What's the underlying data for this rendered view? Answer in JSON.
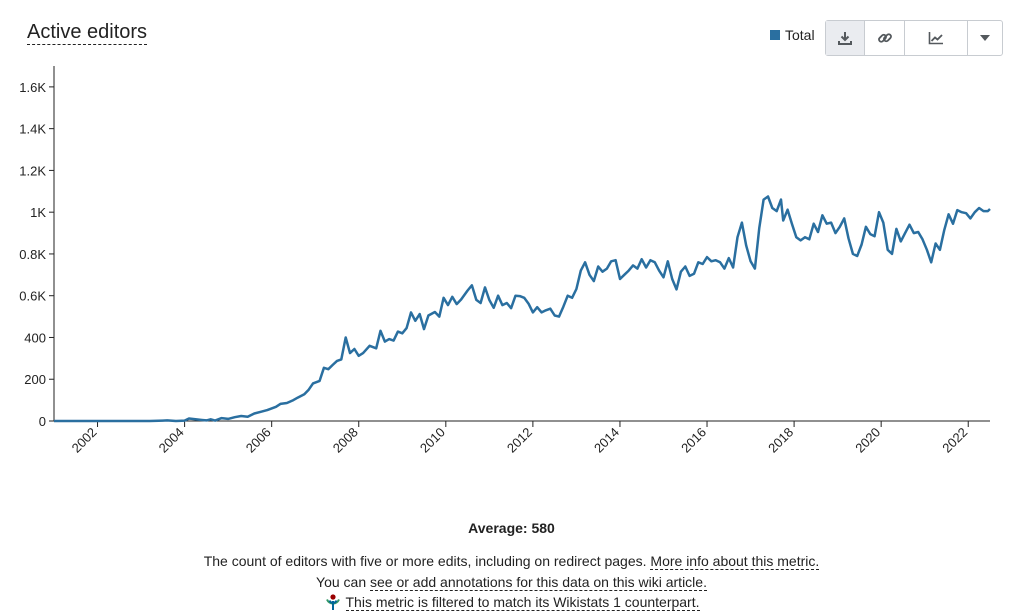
{
  "title": "Active editors",
  "legend": {
    "label": "Total",
    "color": "#2a6fa0"
  },
  "toolbar": {
    "download_icon": "download-icon",
    "link_icon": "link-icon",
    "chart_icon": "line-chart-icon",
    "more_icon": "caret-down-icon"
  },
  "average": "Average: 580",
  "footer": {
    "description": "The count of editors with five or more edits, including on redirect pages. ",
    "more_info_link": "More info about this metric.",
    "annotations_prefix": "You can ",
    "annotations_link": "see or add annotations for this data on this wiki article.",
    "filter_note": "This metric is filtered to match its Wikistats 1 counterpart.",
    "wiki_icon": "wikimedia-icon"
  },
  "chart_data": {
    "type": "line",
    "title": "Active editors",
    "xlabel": "",
    "ylabel": "",
    "x_range": [
      2001.0,
      2022.5
    ],
    "ylim": [
      0,
      1700
    ],
    "y_ticks": [
      0,
      200,
      400,
      600,
      800,
      1000,
      1200,
      1400,
      1600
    ],
    "y_tick_labels": [
      "0",
      "200",
      "400",
      "0.6K",
      "0.8K",
      "1K",
      "1.2K",
      "1.4K",
      "1.6K"
    ],
    "x_ticks": [
      2002,
      2004,
      2006,
      2008,
      2010,
      2012,
      2014,
      2016,
      2018,
      2020,
      2022
    ],
    "x_tick_labels": [
      "2002",
      "2004",
      "2006",
      "2008",
      "2010",
      "2012",
      "2014",
      "2016",
      "2018",
      "2020",
      "2022"
    ],
    "grid": false,
    "legend_position": "top-right",
    "series": [
      {
        "name": "Total",
        "color": "#2a6fa0",
        "points": [
          [
            2001.0,
            0
          ],
          [
            2001.5,
            0
          ],
          [
            2002.0,
            0
          ],
          [
            2002.5,
            0
          ],
          [
            2003.0,
            0
          ],
          [
            2003.2,
            0
          ],
          [
            2003.5,
            2
          ],
          [
            2003.6,
            3
          ],
          [
            2003.8,
            0
          ],
          [
            2004.0,
            2
          ],
          [
            2004.1,
            12
          ],
          [
            2004.25,
            8
          ],
          [
            2004.4,
            5
          ],
          [
            2004.5,
            3
          ],
          [
            2004.6,
            8
          ],
          [
            2004.7,
            2
          ],
          [
            2004.85,
            14
          ],
          [
            2005.0,
            10
          ],
          [
            2005.15,
            18
          ],
          [
            2005.3,
            24
          ],
          [
            2005.45,
            20
          ],
          [
            2005.6,
            36
          ],
          [
            2005.75,
            44
          ],
          [
            2005.9,
            52
          ],
          [
            2006.1,
            68
          ],
          [
            2006.2,
            82
          ],
          [
            2006.35,
            86
          ],
          [
            2006.5,
            100
          ],
          [
            2006.6,
            112
          ],
          [
            2006.75,
            128
          ],
          [
            2006.85,
            150
          ],
          [
            2006.95,
            180
          ],
          [
            2007.1,
            192
          ],
          [
            2007.2,
            255
          ],
          [
            2007.3,
            248
          ],
          [
            2007.4,
            268
          ],
          [
            2007.5,
            288
          ],
          [
            2007.6,
            295
          ],
          [
            2007.7,
            400
          ],
          [
            2007.8,
            325
          ],
          [
            2007.9,
            345
          ],
          [
            2008.0,
            312
          ],
          [
            2008.1,
            325
          ],
          [
            2008.25,
            360
          ],
          [
            2008.4,
            348
          ],
          [
            2008.5,
            432
          ],
          [
            2008.6,
            380
          ],
          [
            2008.7,
            392
          ],
          [
            2008.8,
            385
          ],
          [
            2008.9,
            428
          ],
          [
            2009.0,
            420
          ],
          [
            2009.1,
            445
          ],
          [
            2009.2,
            520
          ],
          [
            2009.3,
            480
          ],
          [
            2009.4,
            512
          ],
          [
            2009.5,
            440
          ],
          [
            2009.6,
            505
          ],
          [
            2009.75,
            522
          ],
          [
            2009.85,
            500
          ],
          [
            2009.95,
            590
          ],
          [
            2010.05,
            555
          ],
          [
            2010.15,
            595
          ],
          [
            2010.25,
            560
          ],
          [
            2010.35,
            582
          ],
          [
            2010.5,
            625
          ],
          [
            2010.6,
            650
          ],
          [
            2010.7,
            580
          ],
          [
            2010.8,
            565
          ],
          [
            2010.9,
            640
          ],
          [
            2011.0,
            580
          ],
          [
            2011.1,
            542
          ],
          [
            2011.2,
            600
          ],
          [
            2011.3,
            555
          ],
          [
            2011.4,
            565
          ],
          [
            2011.5,
            540
          ],
          [
            2011.6,
            600
          ],
          [
            2011.7,
            598
          ],
          [
            2011.8,
            590
          ],
          [
            2011.9,
            562
          ],
          [
            2012.0,
            520
          ],
          [
            2012.1,
            545
          ],
          [
            2012.2,
            520
          ],
          [
            2012.3,
            530
          ],
          [
            2012.4,
            538
          ],
          [
            2012.5,
            505
          ],
          [
            2012.6,
            500
          ],
          [
            2012.7,
            548
          ],
          [
            2012.8,
            600
          ],
          [
            2012.9,
            590
          ],
          [
            2013.0,
            632
          ],
          [
            2013.1,
            720
          ],
          [
            2013.2,
            760
          ],
          [
            2013.3,
            700
          ],
          [
            2013.4,
            670
          ],
          [
            2013.5,
            740
          ],
          [
            2013.6,
            715
          ],
          [
            2013.7,
            730
          ],
          [
            2013.8,
            765
          ],
          [
            2013.9,
            770
          ],
          [
            2014.0,
            680
          ],
          [
            2014.1,
            700
          ],
          [
            2014.2,
            720
          ],
          [
            2014.3,
            745
          ],
          [
            2014.4,
            730
          ],
          [
            2014.5,
            775
          ],
          [
            2014.6,
            735
          ],
          [
            2014.7,
            770
          ],
          [
            2014.8,
            760
          ],
          [
            2014.9,
            720
          ],
          [
            2015.0,
            688
          ],
          [
            2015.1,
            765
          ],
          [
            2015.2,
            680
          ],
          [
            2015.3,
            630
          ],
          [
            2015.4,
            715
          ],
          [
            2015.5,
            740
          ],
          [
            2015.6,
            695
          ],
          [
            2015.7,
            705
          ],
          [
            2015.8,
            760
          ],
          [
            2015.9,
            752
          ],
          [
            2016.0,
            785
          ],
          [
            2016.1,
            765
          ],
          [
            2016.2,
            770
          ],
          [
            2016.3,
            760
          ],
          [
            2016.4,
            730
          ],
          [
            2016.5,
            780
          ],
          [
            2016.6,
            735
          ],
          [
            2016.7,
            880
          ],
          [
            2016.8,
            950
          ],
          [
            2016.9,
            840
          ],
          [
            2017.0,
            765
          ],
          [
            2017.1,
            730
          ],
          [
            2017.2,
            925
          ],
          [
            2017.3,
            1060
          ],
          [
            2017.4,
            1075
          ],
          [
            2017.5,
            1020
          ],
          [
            2017.6,
            1005
          ],
          [
            2017.7,
            1060
          ],
          [
            2017.75,
            960
          ],
          [
            2017.85,
            1012
          ],
          [
            2017.95,
            945
          ],
          [
            2018.05,
            880
          ],
          [
            2018.15,
            865
          ],
          [
            2018.25,
            880
          ],
          [
            2018.35,
            870
          ],
          [
            2018.45,
            945
          ],
          [
            2018.55,
            905
          ],
          [
            2018.65,
            985
          ],
          [
            2018.75,
            945
          ],
          [
            2018.85,
            950
          ],
          [
            2018.95,
            900
          ],
          [
            2019.05,
            930
          ],
          [
            2019.15,
            970
          ],
          [
            2019.25,
            875
          ],
          [
            2019.35,
            800
          ],
          [
            2019.45,
            790
          ],
          [
            2019.55,
            845
          ],
          [
            2019.65,
            930
          ],
          [
            2019.75,
            895
          ],
          [
            2019.85,
            885
          ],
          [
            2019.95,
            1000
          ],
          [
            2020.05,
            950
          ],
          [
            2020.15,
            820
          ],
          [
            2020.25,
            800
          ],
          [
            2020.35,
            920
          ],
          [
            2020.45,
            860
          ],
          [
            2020.55,
            900
          ],
          [
            2020.65,
            940
          ],
          [
            2020.75,
            900
          ],
          [
            2020.85,
            905
          ],
          [
            2020.95,
            870
          ],
          [
            2021.05,
            820
          ],
          [
            2021.15,
            760
          ],
          [
            2021.25,
            850
          ],
          [
            2021.35,
            820
          ],
          [
            2021.45,
            915
          ],
          [
            2021.55,
            990
          ],
          [
            2021.65,
            945
          ],
          [
            2021.75,
            1010
          ],
          [
            2021.85,
            1000
          ],
          [
            2021.95,
            995
          ],
          [
            2022.05,
            970
          ],
          [
            2022.15,
            1000
          ],
          [
            2022.25,
            1020
          ],
          [
            2022.35,
            1005
          ],
          [
            2022.45,
            1005
          ],
          [
            2022.5,
            1015
          ]
        ]
      }
    ]
  }
}
